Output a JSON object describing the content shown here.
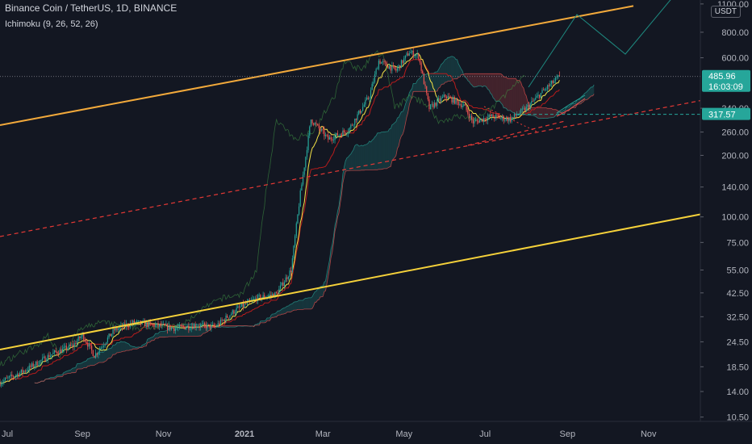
{
  "header": {
    "symbol_line": "Binance Coin / TetherUS, 1D, BINANCE",
    "indicator_line": "Ichimoku (9, 26, 52, 26)"
  },
  "price_axis": {
    "currency_badge": "USDT",
    "labels": [
      "1100.00",
      "800.00",
      "600.00",
      "340.00",
      "260.00",
      "200.00",
      "140.00",
      "100.00",
      "75.00",
      "55.00",
      "42.50",
      "32.50",
      "24.50",
      "18.50",
      "14.00",
      "10.50"
    ],
    "last_price": "485.96",
    "countdown": "16:03:09",
    "marked_price": "317.57"
  },
  "time_axis": {
    "labels": [
      "Jul",
      "Sep",
      "Nov",
      "2021",
      "Mar",
      "May",
      "Jul",
      "Sep",
      "Nov"
    ]
  },
  "colors": {
    "background": "#131722",
    "up": "#26a69a",
    "down": "#ef5350",
    "trendline": "#f5d13a",
    "channel_top": "#f2a93b",
    "channel_mid": "#e53935",
    "conversion_line": "#f5e447",
    "base_line": "#b71c1c",
    "lagging_span": "#43a047",
    "cloud_bull": "#26a69a",
    "cloud_bear": "#ef5350",
    "projection": "#1e8a80",
    "last_price_badge": "#26a69a",
    "marked_price_badge": "#26a69a"
  },
  "chart_data": {
    "type": "candlestick",
    "title": "Binance Coin / TetherUS, 1D, BINANCE",
    "y_scale": "log",
    "ylim": [
      10,
      1150
    ],
    "x_range": [
      "2020-07-01",
      "2021-12-10"
    ],
    "grid": false,
    "close_series": [
      {
        "date": "2020-07-01",
        "value": 15.5
      },
      {
        "date": "2020-07-20",
        "value": 17.8
      },
      {
        "date": "2020-08-10",
        "value": 21.5
      },
      {
        "date": "2020-08-25",
        "value": 23.5
      },
      {
        "date": "2020-09-01",
        "value": 26.5
      },
      {
        "date": "2020-09-10",
        "value": 21.0
      },
      {
        "date": "2020-09-25",
        "value": 28.0
      },
      {
        "date": "2020-10-10",
        "value": 30.5
      },
      {
        "date": "2020-10-25",
        "value": 29.5
      },
      {
        "date": "2020-11-10",
        "value": 28.5
      },
      {
        "date": "2020-11-25",
        "value": 29.5
      },
      {
        "date": "2020-12-10",
        "value": 29.0
      },
      {
        "date": "2020-12-25",
        "value": 35.0
      },
      {
        "date": "2021-01-10",
        "value": 40.0
      },
      {
        "date": "2021-01-25",
        "value": 42.0
      },
      {
        "date": "2021-02-05",
        "value": 55.0
      },
      {
        "date": "2021-02-12",
        "value": 130.0
      },
      {
        "date": "2021-02-20",
        "value": 300.0
      },
      {
        "date": "2021-03-05",
        "value": 240.0
      },
      {
        "date": "2021-03-20",
        "value": 265.0
      },
      {
        "date": "2021-04-05",
        "value": 390.0
      },
      {
        "date": "2021-04-12",
        "value": 580.0
      },
      {
        "date": "2021-04-25",
        "value": 520.0
      },
      {
        "date": "2021-05-05",
        "value": 640.0
      },
      {
        "date": "2021-05-12",
        "value": 610.0
      },
      {
        "date": "2021-05-20",
        "value": 340.0
      },
      {
        "date": "2021-06-01",
        "value": 390.0
      },
      {
        "date": "2021-06-15",
        "value": 350.0
      },
      {
        "date": "2021-06-22",
        "value": 290.0
      },
      {
        "date": "2021-07-05",
        "value": 310.0
      },
      {
        "date": "2021-07-20",
        "value": 300.0
      },
      {
        "date": "2021-08-01",
        "value": 340.0
      },
      {
        "date": "2021-08-15",
        "value": 420.0
      },
      {
        "date": "2021-08-26",
        "value": 485.96
      }
    ]
  }
}
